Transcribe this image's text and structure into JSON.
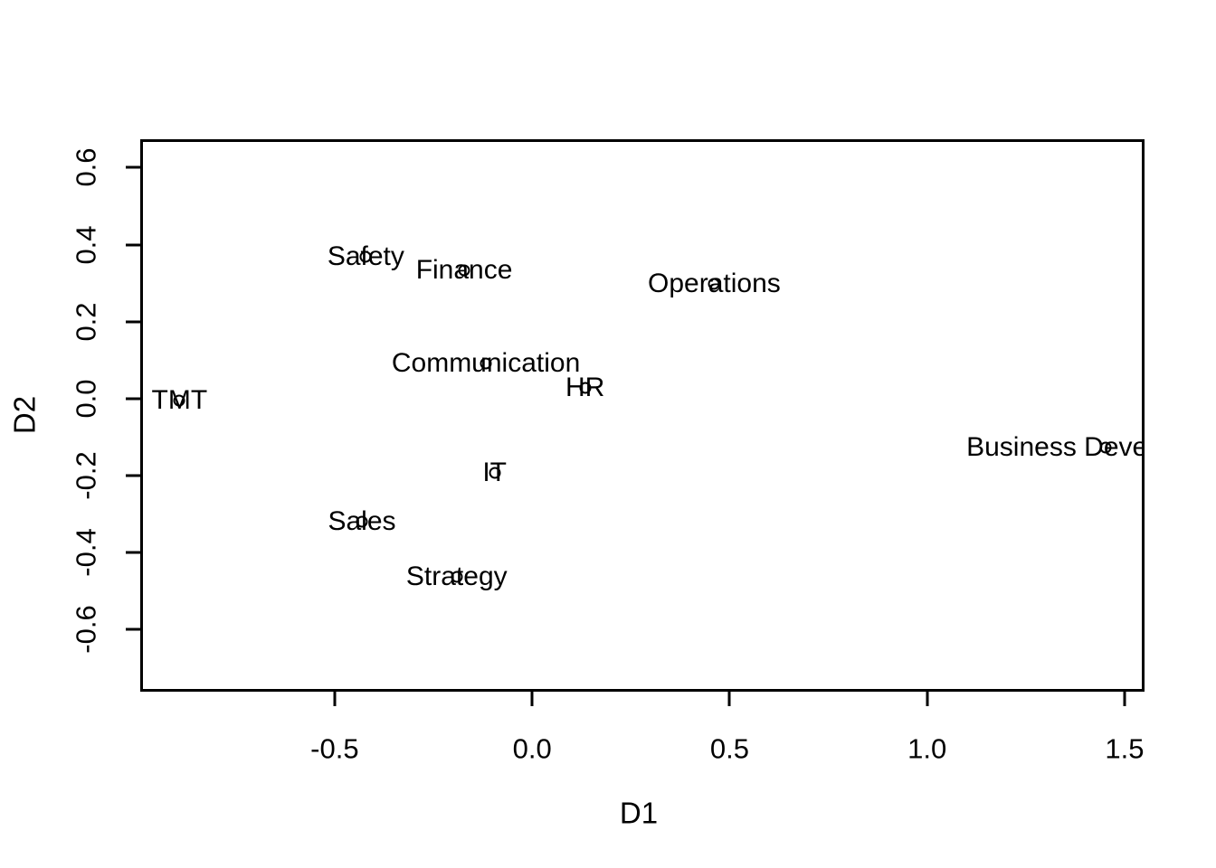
{
  "figure": {
    "background_color": "#ffffff",
    "axis_color": "#000000",
    "text_color": "#000000",
    "marker_style": "open-circle"
  },
  "chart_data": {
    "type": "scatter",
    "title": "",
    "xlabel": "D1",
    "ylabel": "D2",
    "xlim": [
      -0.99,
      1.546
    ],
    "ylim": [
      -0.759,
      0.669
    ],
    "grid": false,
    "legend": "none",
    "x_ticks": {
      "values": [
        -0.5,
        0.0,
        0.5,
        1.0,
        1.5
      ],
      "labels": [
        "-0.5",
        "0.0",
        "0.5",
        "1.0",
        "1.5"
      ]
    },
    "y_ticks": {
      "values": [
        0.6,
        0.4,
        0.2,
        0.0,
        -0.2,
        -0.4,
        -0.6
      ],
      "labels": [
        "0.6",
        "0.4",
        "0.2",
        "0.0",
        "-0.2",
        "-0.4",
        "-0.6"
      ]
    },
    "points": [
      {
        "label": "TMT",
        "x": -0.893,
        "y": -0.006
      },
      {
        "label": "Safety",
        "x": -0.421,
        "y": 0.368
      },
      {
        "label": "Finance",
        "x": -0.172,
        "y": 0.332
      },
      {
        "label": "Operations",
        "x": 0.461,
        "y": 0.299
      },
      {
        "label": "Communication",
        "x": -0.117,
        "y": 0.092
      },
      {
        "label": "HR",
        "x": 0.134,
        "y": 0.027
      },
      {
        "label": "IT",
        "x": -0.095,
        "y": -0.194
      },
      {
        "label": "Sales",
        "x": -0.431,
        "y": -0.32
      },
      {
        "label": "Strategy",
        "x": -0.191,
        "y": -0.464
      },
      {
        "label": "Business Development",
        "x": 1.451,
        "y": -0.128
      }
    ]
  }
}
